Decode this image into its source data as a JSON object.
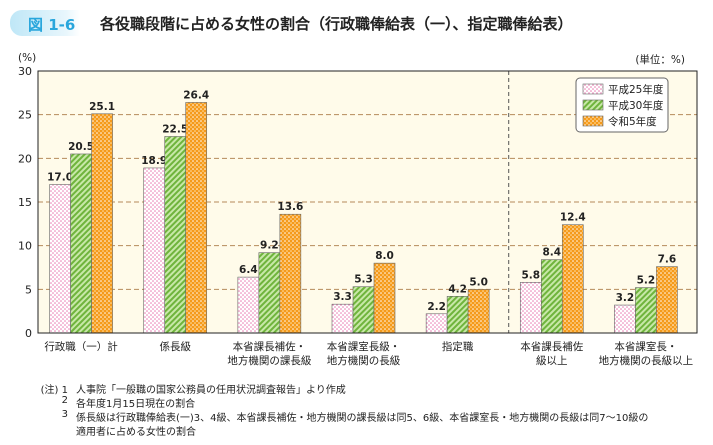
{
  "figure_label": "図 1-6",
  "title": "各役職段階に占める女性の割合（行政職俸給表（一）、指定職俸給表）",
  "chart_data": {
    "type": "bar",
    "ylabel": "(%)",
    "unit": "(単位：%)",
    "ylim": [
      0,
      30
    ],
    "yticks": [
      0,
      5,
      10,
      15,
      20,
      25,
      30
    ],
    "grid": true,
    "legend_position": "top-right",
    "categories": [
      [
        "行政職（一）計"
      ],
      [
        "係長級"
      ],
      [
        "本省課長補佐・",
        "地方機関の課長級"
      ],
      [
        "本省課室長級・",
        "地方機関の長級"
      ],
      [
        "指定職"
      ],
      [
        "本省課長補佐",
        "級以上"
      ],
      [
        "本省課室長・",
        "地方機関の長級以上"
      ]
    ],
    "series": [
      {
        "name": "平成25年度",
        "values": [
          17.0,
          18.9,
          6.4,
          3.3,
          2.2,
          5.8,
          3.2
        ],
        "color": "#e879b0"
      },
      {
        "name": "平成30年度",
        "values": [
          20.5,
          22.5,
          9.2,
          5.3,
          4.2,
          8.4,
          5.2
        ],
        "color": "#7cc24a"
      },
      {
        "name": "令和5年度",
        "values": [
          25.1,
          26.4,
          13.6,
          8.0,
          5.0,
          12.4,
          7.6
        ],
        "color": "#f5a623"
      }
    ]
  },
  "notes": [
    {
      "num": "(注) 1",
      "text": "人事院「一般職の国家公務員の任用状況調査報告」より作成"
    },
    {
      "num": "2",
      "text": "各年度1月15日現在の割合"
    },
    {
      "num": "3",
      "text": "係長級は行政職俸給表(一)3、4級、本省課長補佐・地方機関の課長級は同5、6級、本省課室長・地方機関の長級は同7～10級の"
    },
    {
      "num": "",
      "text": "適用者に占める女性の割合"
    }
  ]
}
